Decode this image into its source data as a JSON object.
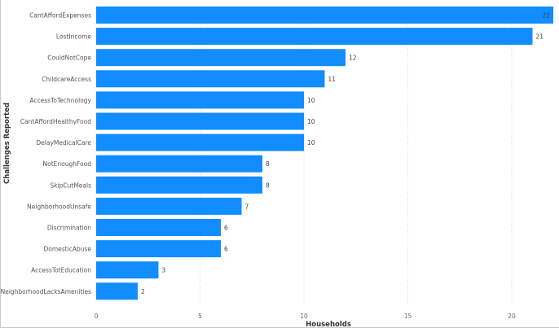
{
  "chart_data": {
    "type": "bar",
    "orientation": "horizontal",
    "categories": [
      "CantAffordExpenses",
      "LostIncome",
      "CouldNotCope",
      "ChildcareAccess",
      "AccessToTechnology",
      "CantAffordHealthyFood",
      "DelayMedicalCare",
      "NotEnoughFood",
      "SkipCutMeals",
      "NeighborhoodUnsafe",
      "Discrimination",
      "DomesticAbuse",
      "AccessTotEducation",
      "NeighborhoodLacksAmenities"
    ],
    "values": [
      22,
      21,
      12,
      11,
      10,
      10,
      10,
      8,
      8,
      7,
      6,
      6,
      3,
      2
    ],
    "xlabel": "Households",
    "ylabel": "Challenges Reported",
    "xlim": [
      0,
      22
    ],
    "xticks": [
      0,
      5,
      10,
      15,
      20
    ],
    "grid": true,
    "bar_color": "#118DFF",
    "value_label_color_inside": "#ffffff",
    "value_label_color_outside": "#444444"
  }
}
